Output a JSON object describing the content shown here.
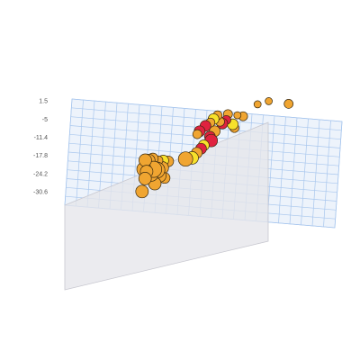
{
  "chart_data": {
    "type": "scatter",
    "variant": "3d-bubble",
    "title": "",
    "xlabel": "",
    "ylabel": "",
    "zlabel": "",
    "y_ticks": [
      "1.5",
      "-5",
      "-11.4",
      "-17.8",
      "-24.2",
      "-30.6"
    ],
    "y_tick_values": [
      1.5,
      -5,
      -11.4,
      -17.8,
      -24.2,
      -30.6
    ],
    "grid": true,
    "legend": "none",
    "colors": {
      "floor_grid": "#a9c7ee",
      "floor_fill": "#edf3fb",
      "wall_fill": "#e6e6ea",
      "wall_edge": "#c8c8d0",
      "marker_stroke": "#3a2a10",
      "orange": "#f0a531",
      "red": "#e0223f",
      "yellow": "#f7e12b"
    },
    "points": [
      {
        "x": 6.2,
        "y": -22.5,
        "z": 4.8,
        "size": 7,
        "color": "orange"
      },
      {
        "x": 6.6,
        "y": -23.1,
        "z": 5.6,
        "size": 7,
        "color": "orange"
      },
      {
        "x": 7.1,
        "y": -22.8,
        "z": 6.2,
        "size": 6,
        "color": "orange"
      },
      {
        "x": 6.0,
        "y": -25.9,
        "z": 5.0,
        "size": 8,
        "color": "orange"
      },
      {
        "x": 6.4,
        "y": -26.5,
        "z": 4.6,
        "size": 7,
        "color": "orange"
      },
      {
        "x": 7.3,
        "y": -26.2,
        "z": 5.4,
        "size": 9,
        "color": "orange"
      },
      {
        "x": 6.9,
        "y": -28.3,
        "z": 5.9,
        "size": 8,
        "color": "orange"
      },
      {
        "x": 6.2,
        "y": -29.0,
        "z": 4.5,
        "size": 7,
        "color": "orange"
      },
      {
        "x": 7.6,
        "y": -27.4,
        "z": 6.8,
        "size": 9,
        "color": "orange"
      },
      {
        "x": 8.3,
        "y": -27.0,
        "z": 7.4,
        "size": 7,
        "color": "orange"
      },
      {
        "x": 8.0,
        "y": -29.6,
        "z": 7.0,
        "size": 7,
        "color": "orange"
      },
      {
        "x": 5.8,
        "y": -33.5,
        "z": 4.2,
        "size": 7,
        "color": "orange"
      },
      {
        "x": 7.4,
        "y": -31.8,
        "z": 6.0,
        "size": 7,
        "color": "orange"
      },
      {
        "x": 8.6,
        "y": -30.8,
        "z": 7.6,
        "size": 6,
        "color": "orange"
      },
      {
        "x": 8.4,
        "y": -24.6,
        "z": 7.8,
        "size": 6,
        "color": "yellow"
      },
      {
        "x": 9.0,
        "y": -25.4,
        "z": 8.6,
        "size": 6,
        "color": "orange"
      },
      {
        "x": 7.8,
        "y": -24.0,
        "z": 7.0,
        "size": 5,
        "color": "orange"
      },
      {
        "x": 11.2,
        "y": -26.0,
        "z": 10.8,
        "size": 8,
        "color": "orange"
      },
      {
        "x": 12.0,
        "y": -26.3,
        "z": 11.9,
        "size": 7,
        "color": "yellow"
      },
      {
        "x": 12.6,
        "y": -24.8,
        "z": 12.4,
        "size": 6,
        "color": "orange"
      },
      {
        "x": 13.1,
        "y": -23.8,
        "z": 13.2,
        "size": 6,
        "color": "red"
      },
      {
        "x": 13.4,
        "y": -23.1,
        "z": 14.0,
        "size": 6,
        "color": "yellow"
      },
      {
        "x": 14.3,
        "y": -22.3,
        "z": 15.4,
        "size": 7,
        "color": "red"
      },
      {
        "x": 14.1,
        "y": -21.0,
        "z": 15.6,
        "size": 6,
        "color": "red"
      },
      {
        "x": 14.7,
        "y": -19.4,
        "z": 16.2,
        "size": 6,
        "color": "orange"
      },
      {
        "x": 12.9,
        "y": -17.5,
        "z": 13.3,
        "size": 6,
        "color": "red"
      },
      {
        "x": 13.6,
        "y": -16.3,
        "z": 14.4,
        "size": 6,
        "color": "red"
      },
      {
        "x": 14.2,
        "y": -15.6,
        "z": 15.2,
        "size": 5,
        "color": "orange"
      },
      {
        "x": 12.6,
        "y": -18.4,
        "z": 13.0,
        "size": 5,
        "color": "orange"
      },
      {
        "x": 15.7,
        "y": -17.0,
        "z": 16.8,
        "size": 6,
        "color": "red"
      },
      {
        "x": 16.2,
        "y": -16.1,
        "z": 17.4,
        "size": 5,
        "color": "red"
      },
      {
        "x": 17.0,
        "y": -18.2,
        "z": 18.2,
        "size": 6,
        "color": "yellow"
      },
      {
        "x": 17.2,
        "y": -19.8,
        "z": 18.6,
        "size": 5,
        "color": "orange"
      },
      {
        "x": 15.4,
        "y": -16.2,
        "z": 16.6,
        "size": 5,
        "color": "orange"
      },
      {
        "x": 14.6,
        "y": -14.6,
        "z": 15.6,
        "size": 6,
        "color": "yellow"
      },
      {
        "x": 15.1,
        "y": -13.6,
        "z": 16.2,
        "size": 5,
        "color": "orange"
      },
      {
        "x": 16.4,
        "y": -14.1,
        "z": 17.6,
        "size": 5,
        "color": "orange"
      },
      {
        "x": 17.6,
        "y": -15.3,
        "z": 18.8,
        "size": 4,
        "color": "orange"
      },
      {
        "x": 18.3,
        "y": -16.2,
        "z": 19.6,
        "size": 5,
        "color": "orange"
      },
      {
        "x": 20.1,
        "y": -13.2,
        "z": 21.7,
        "size": 4,
        "color": "orange"
      },
      {
        "x": 21.5,
        "y": -13.1,
        "z": 23.3,
        "size": 4,
        "color": "orange"
      },
      {
        "x": 24.0,
        "y": -15.8,
        "z": 25.9,
        "size": 5,
        "color": "orange"
      }
    ]
  }
}
